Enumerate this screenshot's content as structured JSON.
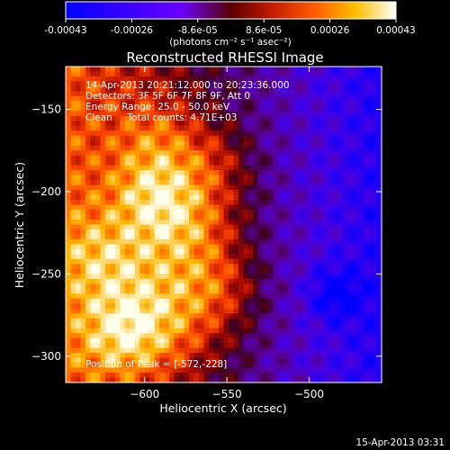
{
  "chart_data": {
    "type": "heatmap",
    "title": "Reconstructed RHESSI Image",
    "xlabel": "Heliocentric X (arcsec)",
    "ylabel": "Heliocentric Y (arcsec)",
    "xlim": [
      -648,
      -456
    ],
    "ylim": [
      -316,
      -124
    ],
    "x_ticks": [
      -600,
      -550,
      -500
    ],
    "y_ticks": [
      -150,
      -200,
      -250,
      -300
    ],
    "colorbar": {
      "ticks": [
        "-0.00043",
        "-0.00026",
        "-8.6e-05",
        "8.6e-05",
        "0.00026",
        "0.00043"
      ],
      "range": [
        -0.00043,
        0.00043
      ],
      "unit_line": "(photons cm⁻² s⁻¹ asec⁻²)"
    },
    "annotations": [
      "14-Apr-2013 20:21:12.000 to 20:23:36.000",
      "Detectors: 3F 5F 6F 7F 8F 9F, Att 0",
      "Energy Range: 25.0 - 50.0 keV",
      "Clean     Total counts: 4.71E+03"
    ],
    "peak": {
      "label": "Position of Peak = [-572,-228]",
      "x": -572,
      "y": -228
    },
    "timestamp": "15-Apr-2013 03:31"
  }
}
